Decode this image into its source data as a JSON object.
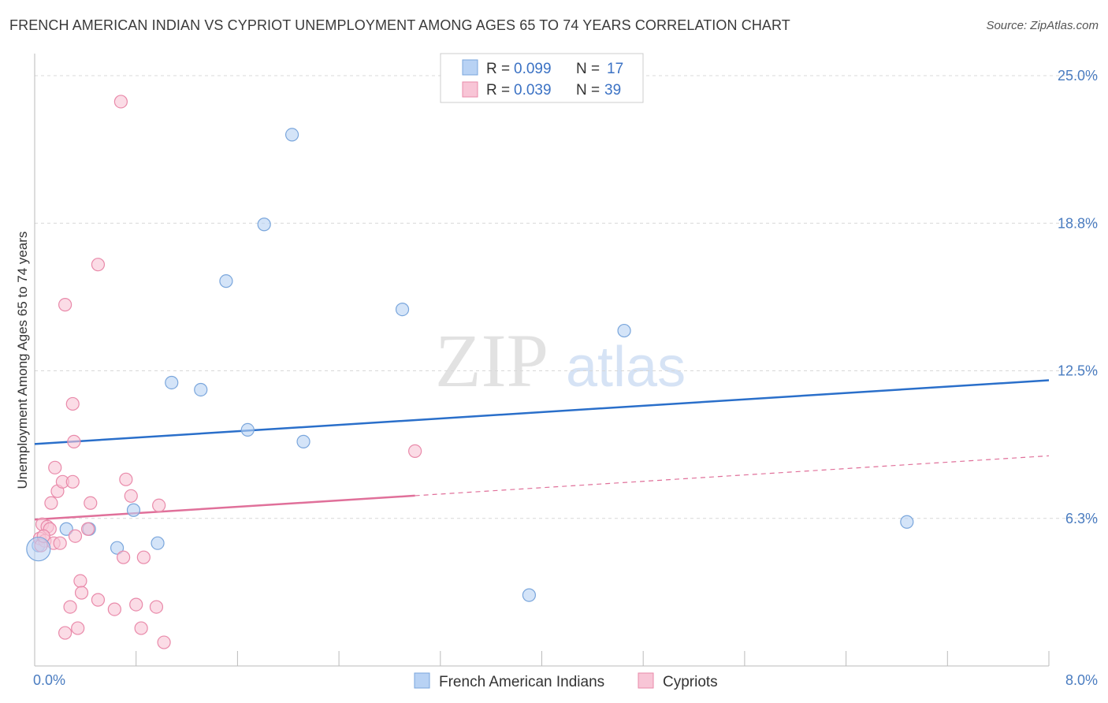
{
  "title": "FRENCH AMERICAN INDIAN VS CYPRIOT UNEMPLOYMENT AMONG AGES 65 TO 74 YEARS CORRELATION CHART",
  "source": "Source: ZipAtlas.com",
  "watermark": {
    "zip": "ZIP",
    "atlas": "atlas"
  },
  "colors": {
    "blue_fill": "#b8d2f4",
    "blue_stroke": "#7aa6dc",
    "blue_line": "#2a6fca",
    "pink_fill": "#f8c5d6",
    "pink_stroke": "#e98aaa",
    "pink_line": "#e0709a",
    "grid": "#d8d8d8",
    "axis_text": "#4a7cc0"
  },
  "legend": {
    "rows": [
      {
        "r_label": "R =",
        "r_value": "0.099",
        "n_label": "N =",
        "n_value": "17"
      },
      {
        "r_label": "R =",
        "r_value": "0.039",
        "n_label": "N =",
        "n_value": "39"
      }
    ]
  },
  "chart_data": {
    "type": "scatter",
    "title": "FRENCH AMERICAN INDIAN VS CYPRIOT UNEMPLOYMENT AMONG AGES 65 TO 74 YEARS CORRELATION CHART",
    "xlabel": "",
    "ylabel": "Unemployment Among Ages 65 to 74 years",
    "xlim": [
      0,
      8.0
    ],
    "ylim": [
      0,
      25.0
    ],
    "x_tick_labels": [
      "0.0%",
      "8.0%"
    ],
    "y_ticks": [
      6.25,
      12.5,
      18.75,
      25.0
    ],
    "y_tick_labels": [
      "6.3%",
      "12.5%",
      "18.8%",
      "25.0%"
    ],
    "grid": true,
    "series": [
      {
        "name": "French American Indians",
        "color": "blue",
        "points": [
          [
            0.03,
            5.1
          ],
          [
            0.25,
            5.8
          ],
          [
            0.43,
            5.8
          ],
          [
            0.65,
            5.0
          ],
          [
            0.78,
            6.6
          ],
          [
            0.97,
            5.2
          ],
          [
            1.08,
            12.0
          ],
          [
            1.31,
            11.7
          ],
          [
            1.51,
            16.3
          ],
          [
            1.68,
            10.0
          ],
          [
            1.81,
            18.7
          ],
          [
            2.03,
            22.5
          ],
          [
            2.12,
            9.5
          ],
          [
            2.9,
            15.1
          ],
          [
            3.9,
            3.0
          ],
          [
            4.65,
            14.2
          ],
          [
            6.88,
            6.1
          ]
        ],
        "trend": {
          "x": [
            0,
            8.0
          ],
          "y": [
            9.4,
            12.1
          ],
          "dashed_from": null
        }
      },
      {
        "name": "Cypriots",
        "color": "pink",
        "points": [
          [
            0.04,
            5.4
          ],
          [
            0.06,
            6.0
          ],
          [
            0.08,
            5.3
          ],
          [
            0.1,
            5.9
          ],
          [
            0.12,
            5.8
          ],
          [
            0.13,
            6.9
          ],
          [
            0.15,
            5.2
          ],
          [
            0.16,
            8.4
          ],
          [
            0.18,
            7.4
          ],
          [
            0.2,
            5.2
          ],
          [
            0.22,
            7.8
          ],
          [
            0.24,
            15.3
          ],
          [
            0.24,
            1.4
          ],
          [
            0.28,
            2.5
          ],
          [
            0.3,
            7.8
          ],
          [
            0.3,
            11.1
          ],
          [
            0.31,
            9.5
          ],
          [
            0.32,
            5.5
          ],
          [
            0.34,
            1.6
          ],
          [
            0.36,
            3.6
          ],
          [
            0.37,
            3.1
          ],
          [
            0.42,
            5.8
          ],
          [
            0.44,
            6.9
          ],
          [
            0.5,
            2.8
          ],
          [
            0.5,
            17.0
          ],
          [
            0.63,
            2.4
          ],
          [
            0.68,
            23.9
          ],
          [
            0.7,
            4.6
          ],
          [
            0.72,
            7.9
          ],
          [
            0.76,
            7.2
          ],
          [
            0.8,
            2.6
          ],
          [
            0.84,
            1.6
          ],
          [
            0.86,
            4.6
          ],
          [
            0.96,
            2.5
          ],
          [
            0.98,
            6.8
          ],
          [
            1.02,
            1.0
          ],
          [
            3.0,
            9.1
          ],
          [
            0.05,
            5.1
          ],
          [
            0.07,
            5.5
          ]
        ],
        "trend": {
          "x": [
            0,
            8.0
          ],
          "y": [
            6.2,
            8.9
          ],
          "dashed_from": 3.0
        }
      }
    ]
  },
  "bottom_legend": [
    "French American Indians",
    "Cypriots"
  ]
}
